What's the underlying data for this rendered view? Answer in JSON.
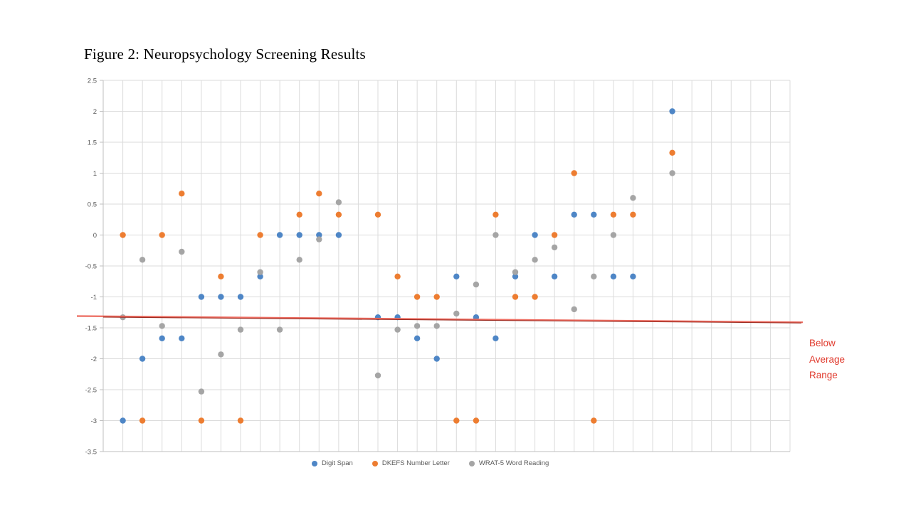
{
  "title": "Figure 2: Neuropsychology Screening Results",
  "annotation": {
    "lines": [
      "Below",
      "Average",
      "Range"
    ],
    "color": "#E0392C"
  },
  "chart_data": {
    "type": "scatter",
    "title": "Figure 2: Neuropsychology Screening Results",
    "xlabel": "",
    "ylabel": "",
    "xlim": [
      0,
      35
    ],
    "ylim": [
      -3.5,
      2.5
    ],
    "yticks": [
      "2.5",
      "2",
      "1.5",
      "1",
      "0.5",
      "0",
      "-0.5",
      "-1",
      "-1.5",
      "-2",
      "-2.5",
      "-3",
      "-3.5"
    ],
    "grid": true,
    "legend_position": "bottom",
    "series": [
      {
        "name": "Digit Span",
        "color": "#4E86C6",
        "points": [
          [
            1,
            -3
          ],
          [
            2,
            -2
          ],
          [
            3,
            -1.67
          ],
          [
            4,
            -1.67
          ],
          [
            5,
            -1
          ],
          [
            6,
            -1
          ],
          [
            7,
            -1
          ],
          [
            8,
            -0.67
          ],
          [
            9,
            0
          ],
          [
            10,
            0
          ],
          [
            11,
            0
          ],
          [
            12,
            0
          ],
          [
            14,
            -1.33
          ],
          [
            15,
            -1.33
          ],
          [
            16,
            -1.67
          ],
          [
            17,
            -2
          ],
          [
            18,
            -0.67
          ],
          [
            19,
            -1.33
          ],
          [
            20,
            -1.67
          ],
          [
            21,
            -0.67
          ],
          [
            22,
            0
          ],
          [
            23,
            -0.67
          ],
          [
            24,
            0.33
          ],
          [
            25,
            0.33
          ],
          [
            26,
            -0.67
          ],
          [
            27,
            -0.67
          ],
          [
            29,
            2
          ]
        ]
      },
      {
        "name": "DKEFS Number Letter",
        "color": "#ED7D31",
        "points": [
          [
            1,
            0
          ],
          [
            2,
            -3
          ],
          [
            3,
            0
          ],
          [
            4,
            0.67
          ],
          [
            5,
            -3
          ],
          [
            6,
            -0.67
          ],
          [
            7,
            -3
          ],
          [
            8,
            0
          ],
          [
            10,
            0.33
          ],
          [
            11,
            0.67
          ],
          [
            12,
            0.33
          ],
          [
            14,
            0.33
          ],
          [
            15,
            -0.67
          ],
          [
            16,
            -1
          ],
          [
            17,
            -1
          ],
          [
            18,
            -3
          ],
          [
            19,
            -3
          ],
          [
            20,
            0.33
          ],
          [
            21,
            -1
          ],
          [
            22,
            -1
          ],
          [
            23,
            0
          ],
          [
            24,
            1
          ],
          [
            25,
            -3
          ],
          [
            26,
            0.33
          ],
          [
            27,
            0.33
          ],
          [
            29,
            1.33
          ]
        ]
      },
      {
        "name": "WRAT-5 Word Reading",
        "color": "#A5A5A5",
        "points": [
          [
            1,
            -1.33
          ],
          [
            2,
            -0.4
          ],
          [
            3,
            -1.47
          ],
          [
            4,
            -0.27
          ],
          [
            5,
            -2.53
          ],
          [
            6,
            -1.93
          ],
          [
            7,
            -1.53
          ],
          [
            8,
            -0.6
          ],
          [
            9,
            -1.53
          ],
          [
            10,
            -0.4
          ],
          [
            11,
            -0.07
          ],
          [
            12,
            0.53
          ],
          [
            14,
            -2.27
          ],
          [
            15,
            -1.53
          ],
          [
            16,
            -1.47
          ],
          [
            17,
            -1.47
          ],
          [
            18,
            -1.27
          ],
          [
            19,
            -0.8
          ],
          [
            20,
            0
          ],
          [
            21,
            -0.6
          ],
          [
            22,
            -0.4
          ],
          [
            23,
            -0.2
          ],
          [
            24,
            -1.2
          ],
          [
            25,
            -0.67
          ],
          [
            26,
            0
          ],
          [
            27,
            0.6
          ],
          [
            29,
            1
          ]
        ]
      }
    ],
    "reference_line": {
      "label": "Below Average Range",
      "start_value": -1.31,
      "end_value": -1.41,
      "color": "#EC6A5E",
      "trend_color": "#9C2B21"
    }
  }
}
